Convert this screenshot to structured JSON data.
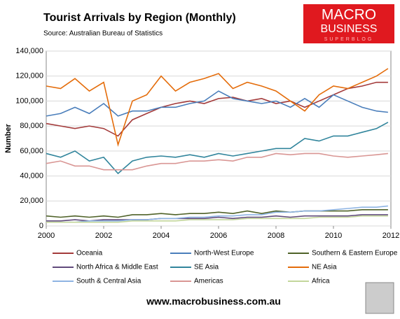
{
  "chart_data": {
    "type": "line",
    "title": "Tourist Arrivals by Region (Monthly)",
    "subtitle": "Source: Australian Bureau of Statistics",
    "y_label": "Number",
    "x": [
      2000,
      2000.5,
      2001,
      2001.5,
      2002,
      2002.5,
      2003,
      2003.5,
      2004,
      2004.5,
      2005,
      2005.5,
      2006,
      2006.5,
      2007,
      2007.5,
      2008,
      2008.5,
      2009,
      2009.5,
      2010,
      2010.5,
      2011,
      2011.5,
      2011.9
    ],
    "xlim": [
      2000,
      2012
    ],
    "xticks": [
      2000,
      2002,
      2004,
      2006,
      2008,
      2010,
      2012
    ],
    "ylim": [
      0,
      140000
    ],
    "yticks": [
      0,
      {
        "value": 20000,
        "label": "20,000"
      },
      {
        "value": 40000,
        "label": "40,000"
      },
      {
        "value": 60000,
        "label": "60,000"
      },
      {
        "value": 80000,
        "label": "80,000"
      },
      {
        "value": 100000,
        "label": "100,000"
      },
      {
        "value": 120000,
        "label": "120,000"
      },
      {
        "value": 140000,
        "label": "140,000"
      }
    ],
    "series": [
      {
        "name": "Oceania",
        "color": "#a33a3a",
        "values": [
          82000,
          80000,
          78000,
          80000,
          78000,
          72000,
          85000,
          90000,
          95000,
          98000,
          100000,
          98000,
          102000,
          103000,
          100000,
          102000,
          98000,
          100000,
          95000,
          100000,
          105000,
          110000,
          112000,
          115000,
          115000
        ]
      },
      {
        "name": "North-West Europe",
        "color": "#4a7ebb",
        "values": [
          88000,
          90000,
          95000,
          90000,
          98000,
          88000,
          92000,
          92000,
          95000,
          95000,
          98000,
          100000,
          108000,
          102000,
          100000,
          98000,
          100000,
          95000,
          102000,
          95000,
          105000,
          100000,
          95000,
          92000,
          91000
        ]
      },
      {
        "name": "Southern & Eastern Europe",
        "color": "#4f6228",
        "values": [
          8000,
          7000,
          8000,
          7000,
          8000,
          7000,
          9000,
          9000,
          10000,
          9000,
          10000,
          10000,
          11000,
          10000,
          12000,
          10000,
          12000,
          11000,
          12000,
          12000,
          12000,
          12000,
          13000,
          13000,
          13000
        ]
      },
      {
        "name": "North Africa & Middle East",
        "color": "#604a7b",
        "values": [
          4000,
          4000,
          5000,
          4000,
          5000,
          5000,
          5000,
          5000,
          6000,
          6000,
          6000,
          6000,
          7000,
          6000,
          7000,
          7000,
          8000,
          7000,
          8000,
          8000,
          8000,
          8000,
          9000,
          9000,
          9000
        ]
      },
      {
        "name": "SE Asia",
        "color": "#31859c",
        "values": [
          58000,
          55000,
          60000,
          52000,
          55000,
          42000,
          52000,
          55000,
          56000,
          55000,
          57000,
          55000,
          58000,
          56000,
          58000,
          60000,
          62000,
          62000,
          70000,
          68000,
          72000,
          72000,
          75000,
          78000,
          83000
        ]
      },
      {
        "name": "NE Asia",
        "color": "#e46c0a",
        "values": [
          112000,
          110000,
          118000,
          108000,
          115000,
          65000,
          100000,
          105000,
          120000,
          108000,
          115000,
          118000,
          122000,
          110000,
          115000,
          112000,
          108000,
          100000,
          92000,
          105000,
          112000,
          110000,
          115000,
          120000,
          126000
        ]
      },
      {
        "name": "South & Central Asia",
        "color": "#8eb4e3",
        "values": [
          3000,
          3000,
          3000,
          4000,
          4000,
          4000,
          5000,
          5000,
          6000,
          6000,
          7000,
          7000,
          8000,
          8000,
          9000,
          9000,
          11000,
          11000,
          12000,
          12000,
          13000,
          14000,
          15000,
          15000,
          16000
        ]
      },
      {
        "name": "Americas",
        "color": "#d99694",
        "values": [
          50000,
          52000,
          48000,
          48000,
          45000,
          45000,
          45000,
          48000,
          50000,
          50000,
          52000,
          52000,
          53000,
          52000,
          55000,
          55000,
          58000,
          57000,
          58000,
          58000,
          56000,
          55000,
          56000,
          57000,
          58000
        ]
      },
      {
        "name": "Africa",
        "color": "#c3d69b",
        "values": [
          3000,
          3000,
          3000,
          3000,
          3000,
          3000,
          4000,
          4000,
          4000,
          4000,
          5000,
          5000,
          5000,
          5000,
          6000,
          6000,
          6000,
          6000,
          6000,
          7000,
          7000,
          7000,
          8000,
          8000,
          8000
        ]
      }
    ]
  },
  "logo": {
    "line1": "MACRO",
    "line2": "BUSINESS",
    "line3": "SUPERBLOG"
  },
  "footer": "www.macrobusiness.com.au"
}
